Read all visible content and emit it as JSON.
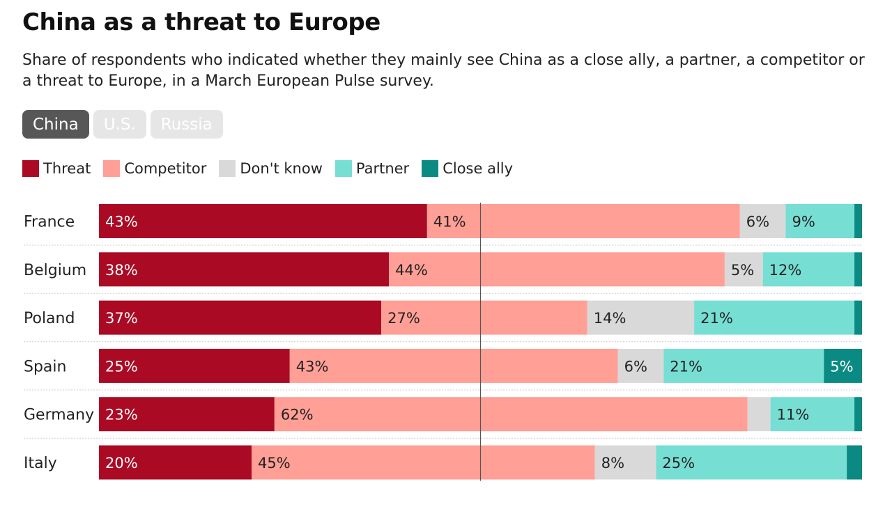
{
  "header": {
    "title": "China as a threat to Europe",
    "subtitle": "Share of respondents who indicated whether they mainly see China as a close ally, a partner, a competitor or a threat to Europe, in a March European Pulse survey."
  },
  "tabs": [
    {
      "label": "China",
      "active": true
    },
    {
      "label": "U.S.",
      "active": false
    },
    {
      "label": "Russia",
      "active": false
    }
  ],
  "colors": {
    "threat": "#ab0a24",
    "competitor": "#ff9f96",
    "dont_know": "#d9d9d9",
    "partner": "#77ded4",
    "close_ally": "#0a8a82"
  },
  "chart_data": {
    "type": "bar",
    "orientation": "horizontal",
    "stacked": true,
    "categories": [
      "France",
      "Belgium",
      "Poland",
      "Spain",
      "Germany",
      "Italy"
    ],
    "series": [
      {
        "name": "Threat",
        "key": "threat",
        "values": [
          43,
          38,
          37,
          25,
          23,
          20
        ],
        "labels": [
          "43%",
          "38%",
          "37%",
          "25%",
          "23%",
          "20%"
        ]
      },
      {
        "name": "Competitor",
        "key": "competitor",
        "values": [
          41,
          44,
          27,
          43,
          62,
          45
        ],
        "labels": [
          "41%",
          "44%",
          "27%",
          "43%",
          "62%",
          "45%"
        ]
      },
      {
        "name": "Don't know",
        "key": "dont_know",
        "values": [
          6,
          5,
          14,
          6,
          3,
          8
        ],
        "labels": [
          "6%",
          "5%",
          "14%",
          "6%",
          "",
          "8%"
        ]
      },
      {
        "name": "Partner",
        "key": "partner",
        "values": [
          9,
          12,
          21,
          21,
          11,
          25
        ],
        "labels": [
          "9%",
          "12%",
          "21%",
          "21%",
          "11%",
          "25%"
        ]
      },
      {
        "name": "Close ally",
        "key": "close_ally",
        "values": [
          1,
          1,
          1,
          5,
          1,
          2
        ],
        "labels": [
          "",
          "",
          "",
          "5%",
          "",
          ""
        ]
      }
    ],
    "xlim": [
      0,
      100
    ],
    "reference_line": 50,
    "legend_position": "top-left"
  }
}
